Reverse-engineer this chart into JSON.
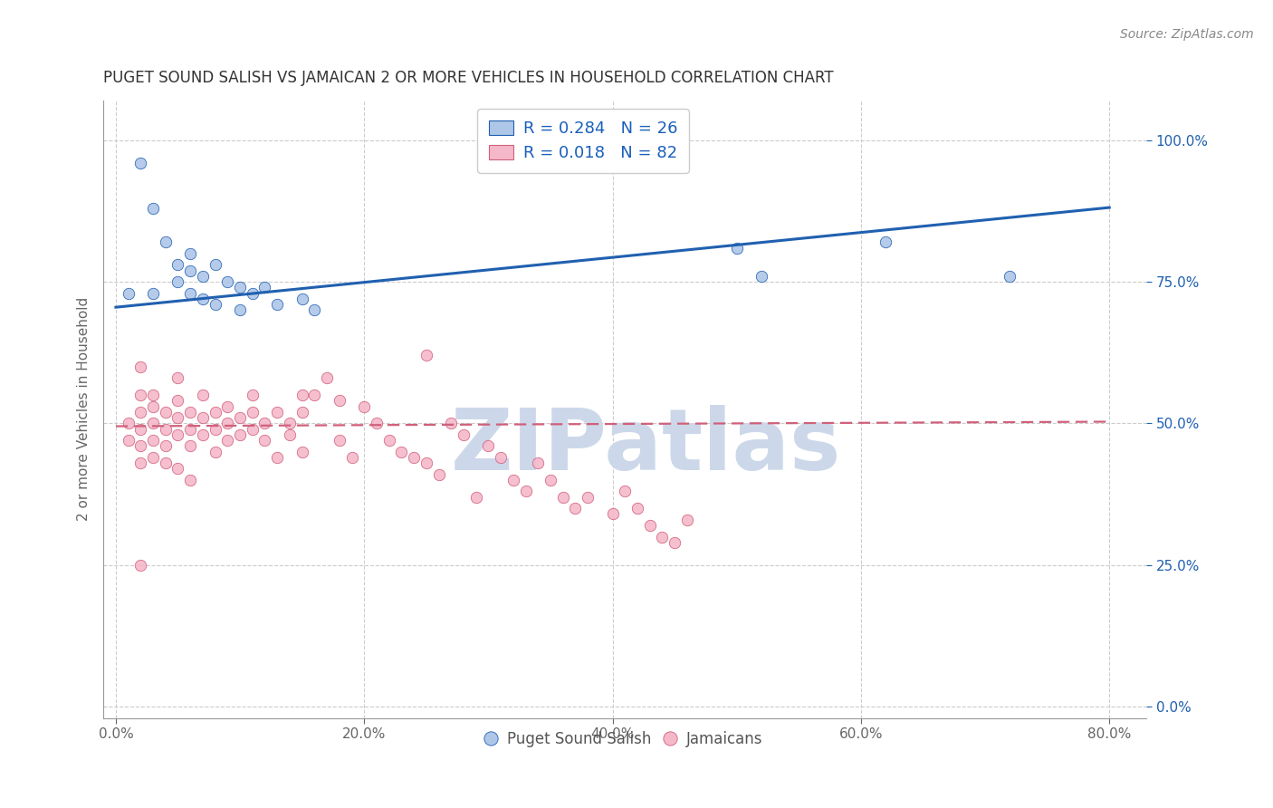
{
  "title": "PUGET SOUND SALISH VS JAMAICAN 2 OR MORE VEHICLES IN HOUSEHOLD CORRELATION CHART",
  "source": "Source: ZipAtlas.com",
  "xlabel_vals": [
    0.0,
    20.0,
    40.0,
    60.0,
    80.0
  ],
  "ylabel_vals": [
    0.0,
    25.0,
    50.0,
    75.0,
    100.0
  ],
  "xlim": [
    -1,
    83
  ],
  "ylim": [
    -2,
    107
  ],
  "blue_label": "Puget Sound Salish",
  "pink_label": "Jamaicans",
  "blue_R": 0.284,
  "blue_N": 26,
  "pink_R": 0.018,
  "pink_N": 82,
  "blue_color": "#aec6e8",
  "pink_color": "#f5b8cb",
  "blue_line_color": "#2060b0",
  "pink_line_color": "#d0607a",
  "legend_text_color": "#1a5fbb",
  "title_color": "#333333",
  "watermark_color": "#ccd8ea",
  "blue_x": [
    1,
    2,
    3,
    3,
    4,
    5,
    5,
    6,
    6,
    6,
    7,
    7,
    8,
    8,
    9,
    10,
    10,
    11,
    12,
    13,
    15,
    16,
    50,
    52,
    62,
    72
  ],
  "blue_y": [
    73,
    96,
    88,
    73,
    82,
    78,
    75,
    80,
    77,
    73,
    76,
    72,
    78,
    71,
    75,
    74,
    70,
    73,
    74,
    71,
    72,
    70,
    81,
    76,
    82,
    76
  ],
  "pink_x": [
    1,
    1,
    2,
    2,
    2,
    2,
    2,
    2,
    2,
    3,
    3,
    3,
    3,
    3,
    4,
    4,
    4,
    4,
    5,
    5,
    5,
    5,
    5,
    6,
    6,
    6,
    6,
    7,
    7,
    7,
    8,
    8,
    8,
    9,
    9,
    9,
    10,
    10,
    11,
    11,
    11,
    12,
    12,
    13,
    13,
    14,
    14,
    15,
    15,
    15,
    16,
    17,
    18,
    18,
    19,
    20,
    21,
    22,
    23,
    24,
    25,
    25,
    26,
    27,
    28,
    29,
    30,
    31,
    32,
    33,
    34,
    35,
    36,
    37,
    38,
    40,
    41,
    42,
    43,
    44,
    45,
    46
  ],
  "pink_y": [
    50,
    47,
    55,
    52,
    49,
    46,
    60,
    43,
    25,
    53,
    50,
    47,
    55,
    44,
    52,
    49,
    46,
    43,
    58,
    54,
    51,
    48,
    42,
    52,
    49,
    46,
    40,
    55,
    51,
    48,
    52,
    49,
    45,
    53,
    50,
    47,
    51,
    48,
    55,
    52,
    49,
    50,
    47,
    52,
    44,
    50,
    48,
    55,
    52,
    45,
    55,
    58,
    54,
    47,
    44,
    53,
    50,
    47,
    45,
    44,
    43,
    62,
    41,
    50,
    48,
    37,
    46,
    44,
    40,
    38,
    43,
    40,
    37,
    35,
    37,
    34,
    38,
    35,
    32,
    30,
    29,
    33
  ],
  "blue_intercept": 70.5,
  "blue_slope": 0.22,
  "pink_intercept": 49.5,
  "pink_slope": 0.01,
  "background_color": "#ffffff",
  "grid_color": "#cccccc",
  "axis_color": "#999999",
  "ylabel_label": "2 or more Vehicles in Household"
}
